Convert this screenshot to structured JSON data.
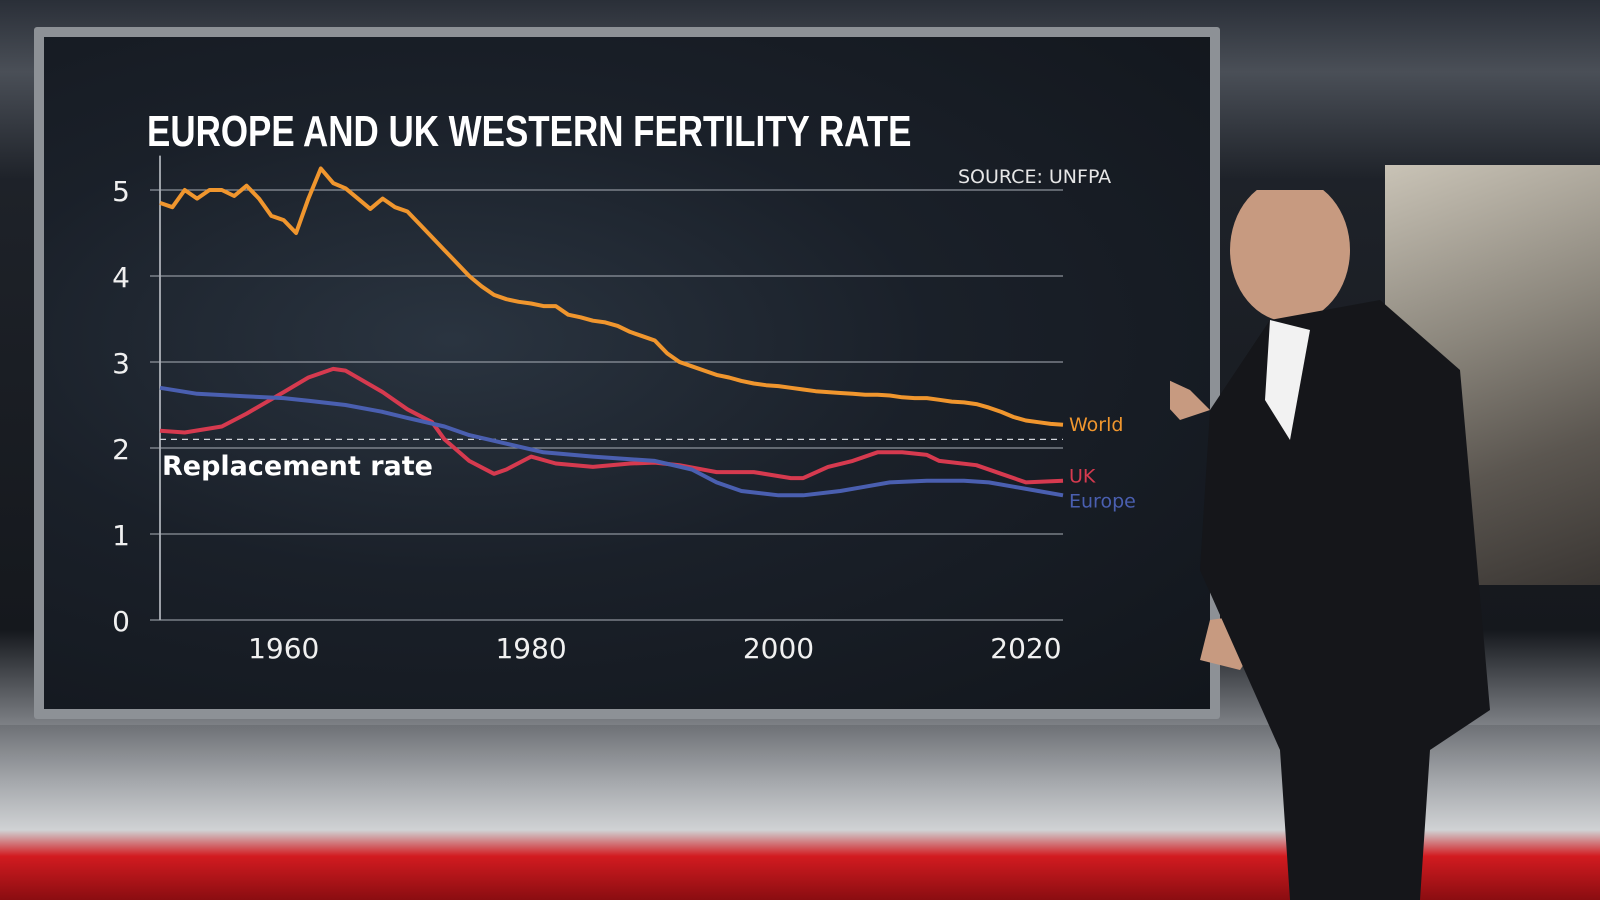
{
  "chart_data": {
    "type": "line",
    "title": "EUROPE AND UK WESTERN FERTILITY RATE",
    "source": "SOURCE: UNFPA",
    "xlabel": "",
    "ylabel": "",
    "xlim": [
      1950,
      2023
    ],
    "ylim": [
      0,
      5.3
    ],
    "x_ticks": [
      "1960",
      "1980",
      "2000",
      "2020"
    ],
    "y_ticks": [
      "0",
      "1",
      "2",
      "3",
      "4",
      "5"
    ],
    "grid": true,
    "reference_line": {
      "label": "Replacement rate",
      "value": 2.1
    },
    "series": [
      {
        "name": "World",
        "color": "#f0962e",
        "x": [
          1950,
          1951,
          1952,
          1953,
          1954,
          1955,
          1956,
          1957,
          1958,
          1959,
          1960,
          1961,
          1962,
          1963,
          1964,
          1965,
          1966,
          1967,
          1968,
          1969,
          1970,
          1971,
          1972,
          1973,
          1974,
          1975,
          1976,
          1977,
          1978,
          1979,
          1980,
          1981,
          1982,
          1983,
          1984,
          1985,
          1986,
          1987,
          1988,
          1989,
          1990,
          1991,
          1992,
          1993,
          1994,
          1995,
          1996,
          1997,
          1998,
          1999,
          2000,
          2001,
          2002,
          2003,
          2004,
          2005,
          2006,
          2007,
          2008,
          2009,
          2010,
          2011,
          2012,
          2013,
          2014,
          2015,
          2016,
          2017,
          2018,
          2019,
          2020,
          2021,
          2022,
          2023
        ],
        "values": [
          4.85,
          4.8,
          5.0,
          4.9,
          5.0,
          5.0,
          4.93,
          5.05,
          4.9,
          4.7,
          4.65,
          4.5,
          4.9,
          5.25,
          5.08,
          5.02,
          4.9,
          4.78,
          4.9,
          4.8,
          4.75,
          4.6,
          4.45,
          4.3,
          4.15,
          4.0,
          3.88,
          3.78,
          3.73,
          3.7,
          3.68,
          3.65,
          3.65,
          3.55,
          3.52,
          3.48,
          3.46,
          3.42,
          3.35,
          3.3,
          3.25,
          3.1,
          3.0,
          2.95,
          2.9,
          2.85,
          2.82,
          2.78,
          2.75,
          2.73,
          2.72,
          2.7,
          2.68,
          2.66,
          2.65,
          2.64,
          2.63,
          2.62,
          2.62,
          2.61,
          2.59,
          2.58,
          2.58,
          2.56,
          2.54,
          2.53,
          2.51,
          2.47,
          2.42,
          2.36,
          2.32,
          2.3,
          2.28,
          2.27
        ]
      },
      {
        "name": "UK",
        "color": "#d63a4f",
        "x": [
          1950,
          1952,
          1955,
          1957,
          1960,
          1962,
          1964,
          1965,
          1968,
          1970,
          1972,
          1973,
          1975,
          1977,
          1978,
          1980,
          1982,
          1985,
          1988,
          1990,
          1992,
          1995,
          1998,
          2001,
          2002,
          2004,
          2006,
          2008,
          2010,
          2012,
          2013,
          2016,
          2018,
          2020,
          2023
        ],
        "values": [
          2.2,
          2.18,
          2.25,
          2.4,
          2.65,
          2.82,
          2.92,
          2.9,
          2.65,
          2.45,
          2.3,
          2.1,
          1.85,
          1.7,
          1.75,
          1.9,
          1.82,
          1.78,
          1.82,
          1.83,
          1.8,
          1.72,
          1.72,
          1.65,
          1.65,
          1.78,
          1.85,
          1.95,
          1.95,
          1.92,
          1.85,
          1.8,
          1.7,
          1.6,
          1.62
        ]
      },
      {
        "name": "Europe",
        "color": "#4a5fb0",
        "x": [
          1950,
          1953,
          1957,
          1960,
          1962,
          1965,
          1968,
          1970,
          1973,
          1975,
          1978,
          1981,
          1985,
          1990,
          1993,
          1995,
          1997,
          2000,
          2002,
          2005,
          2007,
          2009,
          2012,
          2015,
          2017,
          2019,
          2021,
          2023
        ],
        "values": [
          2.7,
          2.63,
          2.6,
          2.58,
          2.55,
          2.5,
          2.42,
          2.35,
          2.25,
          2.15,
          2.05,
          1.95,
          1.9,
          1.85,
          1.75,
          1.6,
          1.5,
          1.45,
          1.45,
          1.5,
          1.55,
          1.6,
          1.62,
          1.62,
          1.6,
          1.55,
          1.5,
          1.45
        ]
      }
    ]
  }
}
